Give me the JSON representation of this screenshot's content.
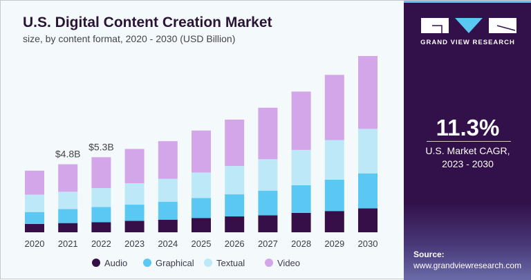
{
  "title": "U.S. Digital Content Creation Market",
  "subtitle": "size, by content format, 2020 - 2030 (USD Billion)",
  "brand": "GRAND VIEW RESEARCH",
  "cagr": {
    "value": "11.3%",
    "label_line1": "U.S. Market CAGR,",
    "label_line2": "2023 - 2030"
  },
  "source": {
    "label": "Source:",
    "url": "www.grandviewresearch.com"
  },
  "colors": {
    "Audio": "#360f48",
    "Graphical": "#5bc8f3",
    "Textual": "#bde8f8",
    "Video": "#d3a6ea",
    "panel": "#32104a"
  },
  "chart_data": {
    "type": "bar",
    "stacked": true,
    "title": "U.S. Digital Content Creation Market",
    "subtitle": "size, by content format, 2020 - 2030 (USD Billion)",
    "categories": [
      "2020",
      "2021",
      "2022",
      "2023",
      "2024",
      "2025",
      "2026",
      "2027",
      "2028",
      "2029",
      "2030"
    ],
    "series": [
      {
        "name": "Audio",
        "values": [
          0.59,
          0.65,
          0.71,
          0.81,
          0.89,
          1.01,
          1.12,
          1.2,
          1.37,
          1.5,
          1.69
        ]
      },
      {
        "name": "Graphical",
        "values": [
          0.84,
          0.99,
          1.07,
          1.14,
          1.27,
          1.41,
          1.56,
          1.74,
          1.95,
          2.21,
          2.47
        ]
      },
      {
        "name": "Textual",
        "values": [
          1.23,
          1.22,
          1.34,
          1.51,
          1.62,
          1.8,
          2.0,
          2.22,
          2.49,
          2.8,
          3.14
        ]
      },
      {
        "name": "Video",
        "values": [
          1.69,
          1.94,
          2.18,
          2.42,
          2.65,
          2.96,
          3.27,
          3.63,
          4.12,
          4.6,
          5.14
        ]
      }
    ],
    "annotations": [
      {
        "category": "2021",
        "text": "$4.8B"
      },
      {
        "category": "2022",
        "text": "$5.3B"
      }
    ],
    "legend": "bottom",
    "grid": false,
    "yaxis_visible": false
  }
}
